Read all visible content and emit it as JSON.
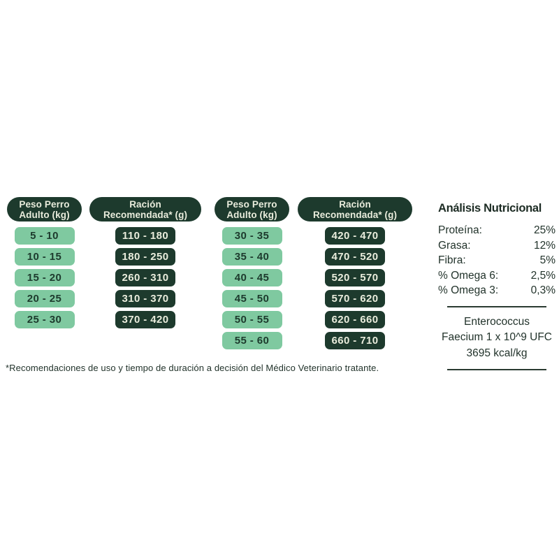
{
  "colors": {
    "dark_green": "#1d3a2d",
    "mint_green": "#7fc9a0",
    "cream_text": "#e9ecdc",
    "body_text": "#22332b"
  },
  "tables": [
    {
      "weight_header": "Peso Perro\nAdulto (kg)",
      "ration_header": "Ración\nRecomendada* (g)",
      "rows": [
        {
          "weight": "5 - 10",
          "ration": "110 - 180"
        },
        {
          "weight": "10 - 15",
          "ration": "180 - 250"
        },
        {
          "weight": "15 - 20",
          "ration": "260 - 310"
        },
        {
          "weight": "20 - 25",
          "ration": "310 - 370"
        },
        {
          "weight": "25 - 30",
          "ration": "370 - 420"
        }
      ]
    },
    {
      "weight_header": "Peso Perro\nAdulto (kg)",
      "ration_header": "Ración\nRecomendada* (g)",
      "rows": [
        {
          "weight": "30 - 35",
          "ration": "420 - 470"
        },
        {
          "weight": "35 - 40",
          "ration": "470 - 520"
        },
        {
          "weight": "40 - 45",
          "ration": "520 - 570"
        },
        {
          "weight": "45 - 50",
          "ration": "570 - 620"
        },
        {
          "weight": "50 - 55",
          "ration": "620 - 660"
        },
        {
          "weight": "55 - 60",
          "ration": "660 - 710"
        }
      ]
    }
  ],
  "nutrition": {
    "title": "Análisis Nutricional",
    "items": [
      {
        "label": "Proteína:",
        "value": "25%"
      },
      {
        "label": "Grasa:",
        "value": "12%"
      },
      {
        "label": "Fibra:",
        "value": "5%"
      },
      {
        "label": "% Omega 6:",
        "value": "2,5%"
      },
      {
        "label": "% Omega 3:",
        "value": "0,3%"
      }
    ],
    "probiotic_line1": "Enterococcus",
    "probiotic_line2": "Faecium 1 x 10^9 UFC",
    "energy_line": "3695 kcal/kg"
  },
  "footnote": "*Recomendaciones de uso y tiempo de duración a decisión del Médico Veterinario tratante."
}
